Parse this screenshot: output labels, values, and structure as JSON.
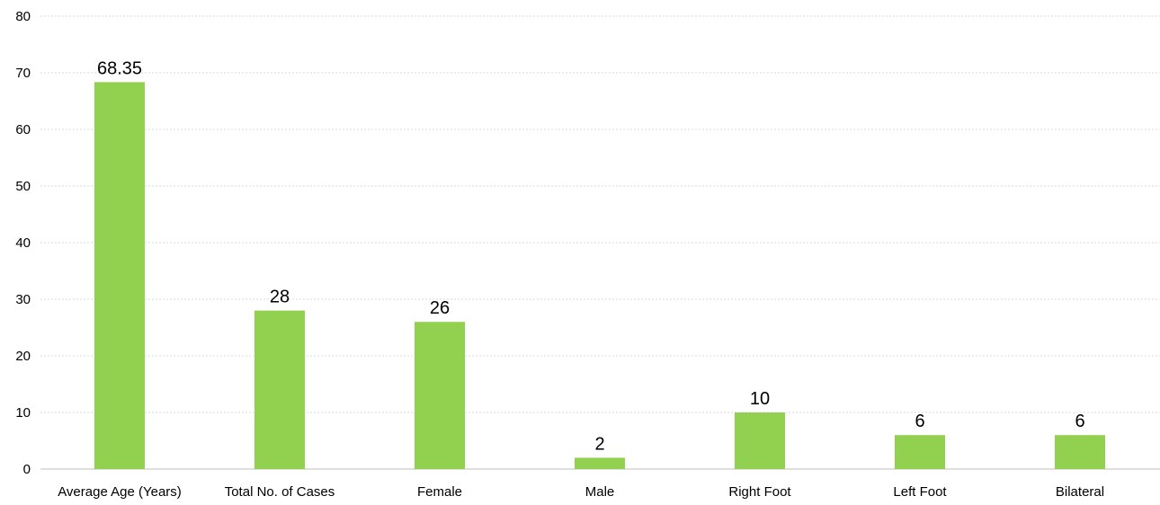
{
  "chart_data": {
    "type": "bar",
    "title": "",
    "xlabel": "",
    "ylabel": "",
    "categories": [
      "Average Age (Years)",
      "Total No. of Cases",
      "Female",
      "Male",
      "Right Foot",
      "Left Foot",
      "Bilateral"
    ],
    "values": [
      68.35,
      28,
      26,
      2,
      10,
      6,
      6
    ],
    "data_labels": [
      "68.35",
      "28",
      "26",
      "2",
      "10",
      "6",
      "6"
    ],
    "ylim": [
      0,
      80
    ],
    "yticks": [
      0,
      10,
      20,
      30,
      40,
      50,
      60,
      70,
      80
    ],
    "ytick_labels": [
      "0",
      "10",
      "20",
      "30",
      "40",
      "50",
      "60",
      "70",
      "80"
    ],
    "grid": true,
    "legend": "none",
    "colors": {
      "bar": "#92d050",
      "grid": "#d9d9d9",
      "text": "#000000"
    }
  }
}
